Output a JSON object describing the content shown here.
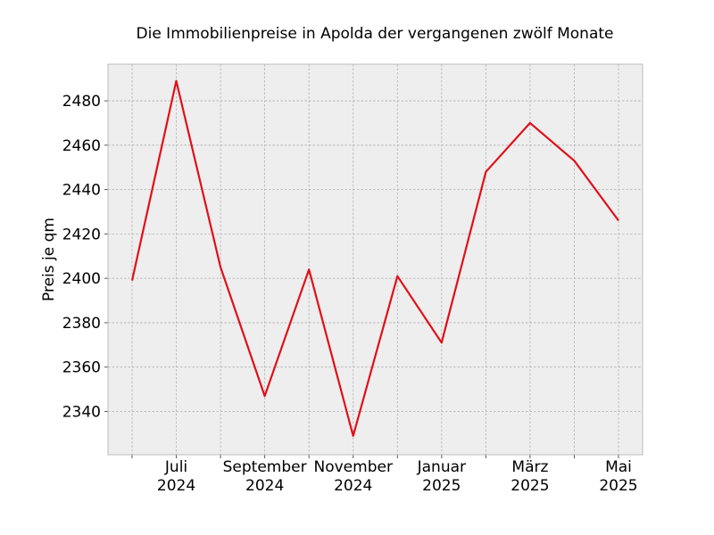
{
  "chart_data": {
    "type": "line",
    "title": "Die Immobilienpreise in Apolda der vergangenen zwölf Monate",
    "xlabel": "",
    "ylabel": "Preis je qm",
    "x": [
      "2024-06",
      "2024-07",
      "2024-08",
      "2024-09",
      "2024-10",
      "2024-11",
      "2024-12",
      "2025-01",
      "2025-02",
      "2025-03",
      "2025-04",
      "2025-05"
    ],
    "x_tick_labels": [
      {
        "x": "2024-07",
        "lines": [
          "Juli",
          "2024"
        ]
      },
      {
        "x": "2024-09",
        "lines": [
          "September",
          "2024"
        ]
      },
      {
        "x": "2024-11",
        "lines": [
          "November",
          "2024"
        ]
      },
      {
        "x": "2025-01",
        "lines": [
          "Januar",
          "2025"
        ]
      },
      {
        "x": "2025-03",
        "lines": [
          "März",
          "2025"
        ]
      },
      {
        "x": "2025-05",
        "lines": [
          "Mai",
          "2025"
        ]
      }
    ],
    "series": [
      {
        "values": [
          2399,
          2489,
          2405,
          2347,
          2404,
          2329,
          2401,
          2371,
          2448,
          2470,
          2453,
          2426
        ],
        "color": "#e0101a"
      }
    ],
    "ylim": [
      2320.5,
      2496.5
    ],
    "y_ticks": [
      2340,
      2360,
      2380,
      2400,
      2420,
      2440,
      2460,
      2480
    ],
    "grid": true,
    "legend": "none",
    "colors": {
      "plot_background": "#eeeeee",
      "grid": "#b0b0b0",
      "frame": "#bcbcbc",
      "line": "#e0101a"
    }
  }
}
